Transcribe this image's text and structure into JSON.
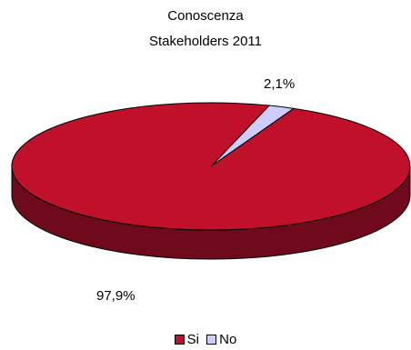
{
  "chart_data": {
    "type": "pie",
    "title_lines": [
      "Conoscenza",
      "Stakeholders 2011"
    ],
    "slices": [
      {
        "name": "Si",
        "value": 97.9,
        "label": "97,9%",
        "color": "#c0102a",
        "side_color": "#6e0a1c"
      },
      {
        "name": "No",
        "value": 2.1,
        "label": "2,1%",
        "color": "#ccccff",
        "side_color": "#8a8ab0"
      }
    ],
    "legend": [
      "Si",
      "No"
    ],
    "legend_position": "bottom"
  }
}
